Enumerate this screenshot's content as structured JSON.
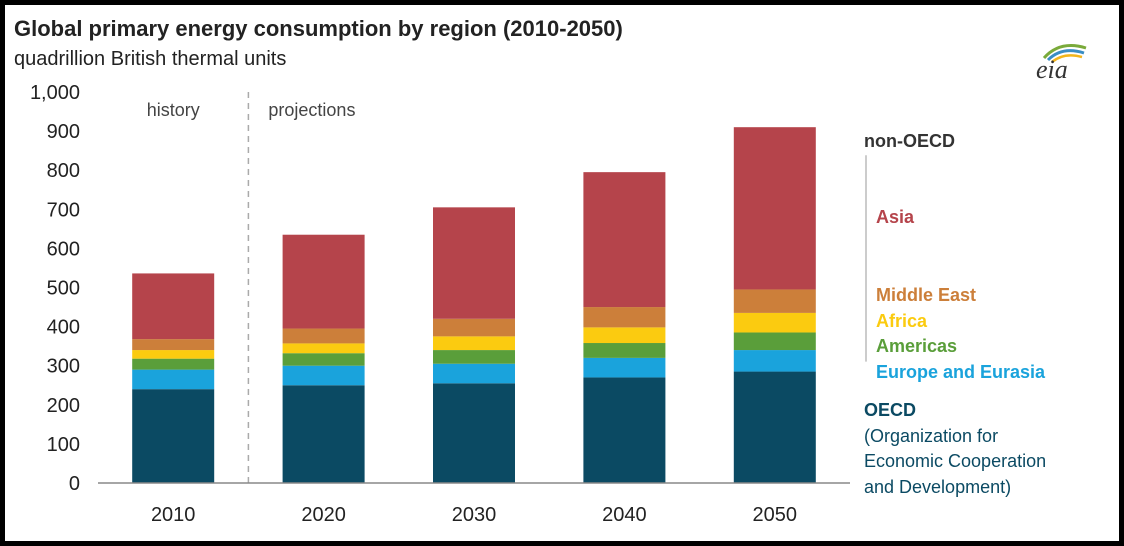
{
  "title": "Global primary energy consumption by region (2010-2050)",
  "subtitle": "quadrillion British thermal units",
  "logo_text": "eia",
  "chart_data": {
    "type": "bar",
    "stacked": true,
    "categories": [
      "2010",
      "2020",
      "2030",
      "2040",
      "2050"
    ],
    "series": [
      {
        "name": "OECD",
        "values": [
          240,
          250,
          255,
          270,
          285
        ]
      },
      {
        "name": "Europe and Eurasia",
        "values": [
          50,
          50,
          50,
          50,
          55
        ]
      },
      {
        "name": "Americas",
        "values": [
          28,
          32,
          35,
          38,
          45
        ]
      },
      {
        "name": "Africa",
        "values": [
          22,
          25,
          35,
          40,
          50
        ]
      },
      {
        "name": "Middle East",
        "values": [
          28,
          38,
          45,
          52,
          60
        ]
      },
      {
        "name": "Asia",
        "values": [
          168,
          240,
          285,
          345,
          415
        ]
      }
    ],
    "colors": {
      "OECD": "#0b4a63",
      "Europe and Eurasia": "#1aa3dc",
      "Americas": "#5a9e3a",
      "Africa": "#fbcb10",
      "Middle East": "#cc7f3a",
      "Asia": "#b5444b"
    },
    "ylim": [
      0,
      1000
    ],
    "yticks": [
      "0",
      "100",
      "200",
      "300",
      "400",
      "500",
      "600",
      "700",
      "800",
      "900",
      "1,000"
    ],
    "period_labels": {
      "history": "history",
      "projections": "projections"
    },
    "legend": {
      "non_oecd_header": "non-OECD",
      "asia": "Asia",
      "middle_east": "Middle East",
      "africa": "Africa",
      "americas": "Americas",
      "europe_eurasia": "Europe and Eurasia",
      "oecd": "OECD",
      "oecd_desc": [
        "(Organization for",
        "Economic Cooperation",
        "and Development)"
      ]
    },
    "grid": false,
    "legend_position": "right"
  }
}
